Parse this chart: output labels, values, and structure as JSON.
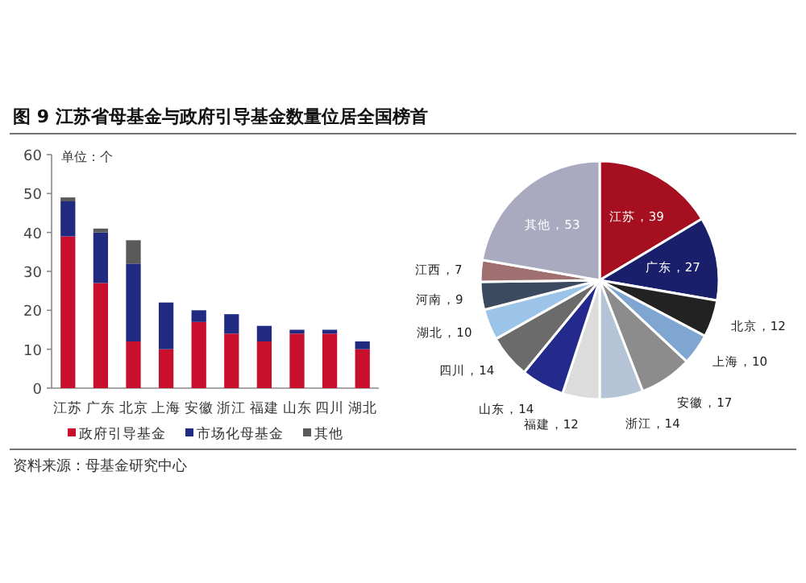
{
  "chart_data": [
    {
      "type": "bar",
      "title": "图 9 江苏省母基金与政府引导基金数量位居全国榜首",
      "ylabel": "单位：个",
      "stacked": true,
      "categories": [
        "江苏",
        "广东",
        "北京",
        "上海",
        "安徽",
        "浙江",
        "福建",
        "山东",
        "四川",
        "湖北"
      ],
      "series": [
        {
          "name": "政府引导基金",
          "color": "#c8102e",
          "values": [
            39,
            27,
            12,
            10,
            17,
            14,
            12,
            14,
            14,
            10
          ]
        },
        {
          "name": "市场化母基金",
          "color": "#1f2a80",
          "values": [
            9,
            13,
            20,
            12,
            3,
            5,
            4,
            1,
            1,
            2
          ]
        },
        {
          "name": "其他",
          "color": "#5a5a5a",
          "values": [
            1,
            1,
            6,
            0,
            0,
            0,
            0,
            0,
            0,
            0
          ]
        }
      ],
      "ylim": [
        0,
        60
      ],
      "yticks": [
        0,
        10,
        20,
        30,
        40,
        50,
        60
      ],
      "grid": false,
      "legend": "bottom",
      "annotations": [
        "资料来源：母基金研究中心"
      ]
    },
    {
      "type": "pie",
      "categories": [
        "江苏",
        "广东",
        "北京",
        "上海",
        "安徽",
        "浙江",
        "福建",
        "山东",
        "四川",
        "湖北",
        "河南",
        "江西",
        "其他"
      ],
      "values": [
        39,
        27,
        12,
        10,
        17,
        14,
        12,
        14,
        14,
        10,
        9,
        7,
        53
      ],
      "value_labels": [
        "，39",
        "，27",
        "，12",
        "，10",
        "，17",
        "，14",
        "，12",
        "，14",
        "，14",
        "，10",
        "，9",
        "，7",
        "，53"
      ],
      "colors": [
        "#a50f1f",
        "#1a1f6b",
        "#222222",
        "#7fa6d0",
        "#8c8c8c",
        "#b4c4d6",
        "#dcdcdc",
        "#232a8c",
        "#6b6b6b",
        "#9cc4e8",
        "#3c4a60",
        "#a07070",
        "#a9a9c0"
      ]
    }
  ]
}
